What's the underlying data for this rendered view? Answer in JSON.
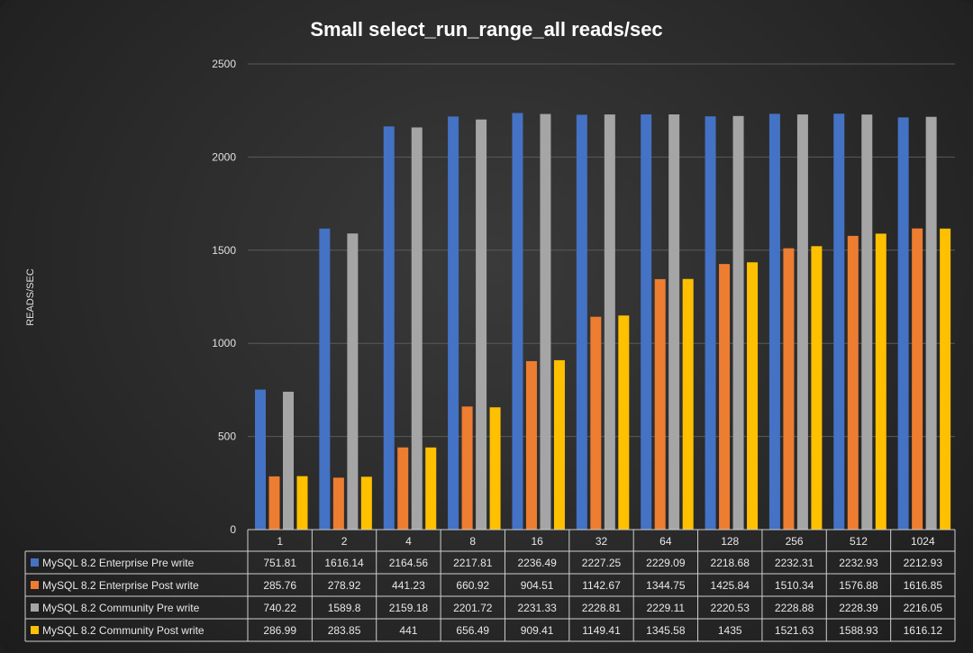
{
  "chart_data": {
    "type": "bar",
    "title": "Small select_run_range_all   reads/sec",
    "ylabel": "READS/SEC",
    "xlabel": "",
    "ylim": [
      0,
      2500
    ],
    "yticks": [
      0,
      500,
      1000,
      1500,
      2000,
      2500
    ],
    "grid": true,
    "legend": "data-table-below",
    "categories": [
      "1",
      "2",
      "4",
      "8",
      "16",
      "32",
      "64",
      "128",
      "256",
      "512",
      "1024"
    ],
    "series": [
      {
        "name": "MySQL 8.2 Enterprise Pre write",
        "color": "#4472c4",
        "values": [
          751.81,
          1616.14,
          2164.56,
          2217.81,
          2236.49,
          2227.25,
          2229.09,
          2218.68,
          2232.31,
          2232.93,
          2212.93
        ]
      },
      {
        "name": "MySQL 8.2 Enterprise Post write",
        "color": "#ed7d31",
        "values": [
          285.76,
          278.92,
          441.23,
          660.92,
          904.51,
          1142.67,
          1344.75,
          1425.84,
          1510.34,
          1576.88,
          1616.85
        ]
      },
      {
        "name": "MySQL 8.2 Community Pre write",
        "color": "#a5a5a5",
        "values": [
          740.22,
          1589.8,
          2159.18,
          2201.72,
          2231.33,
          2228.81,
          2229.11,
          2220.53,
          2228.88,
          2228.39,
          2216.05
        ]
      },
      {
        "name": "MySQL 8.2 Community Post write",
        "color": "#ffc000",
        "values": [
          286.99,
          283.85,
          441,
          656.49,
          909.41,
          1149.41,
          1345.58,
          1435,
          1521.63,
          1588.93,
          1616.12
        ]
      }
    ]
  }
}
